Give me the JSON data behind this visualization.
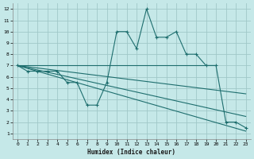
{
  "xlabel": "Humidex (Indice chaleur)",
  "bg_color": "#c5e8e8",
  "grid_color": "#a0c8c8",
  "line_color": "#1e6e6e",
  "xlim": [
    -0.5,
    23.5
  ],
  "ylim": [
    0.5,
    12.5
  ],
  "xticks": [
    0,
    1,
    2,
    3,
    4,
    5,
    6,
    7,
    8,
    9,
    10,
    11,
    12,
    13,
    14,
    15,
    16,
    17,
    18,
    19,
    20,
    21,
    22,
    23
  ],
  "yticks": [
    1,
    2,
    3,
    4,
    5,
    6,
    7,
    8,
    9,
    10,
    11,
    12
  ],
  "series": [
    {
      "x": [
        0,
        1,
        2,
        3,
        4,
        5,
        6,
        7,
        8,
        9,
        10,
        11,
        12,
        13,
        14,
        15,
        16,
        17,
        18,
        19,
        20,
        21,
        22,
        23
      ],
      "y": [
        7,
        6.5,
        6.5,
        6.5,
        6.5,
        5.5,
        5.5,
        3.5,
        3.5,
        5.5,
        10,
        10,
        8.5,
        12,
        9.5,
        9.5,
        10,
        8,
        8,
        7,
        7,
        2,
        2,
        1.5
      ],
      "marker": true
    },
    {
      "x": [
        0,
        20
      ],
      "y": [
        7,
        7
      ],
      "marker": false
    },
    {
      "x": [
        0,
        23
      ],
      "y": [
        7,
        4.5
      ],
      "marker": false
    },
    {
      "x": [
        0,
        23
      ],
      "y": [
        7,
        2.5
      ],
      "marker": false
    },
    {
      "x": [
        0,
        23
      ],
      "y": [
        7,
        1.2
      ],
      "marker": false
    }
  ]
}
